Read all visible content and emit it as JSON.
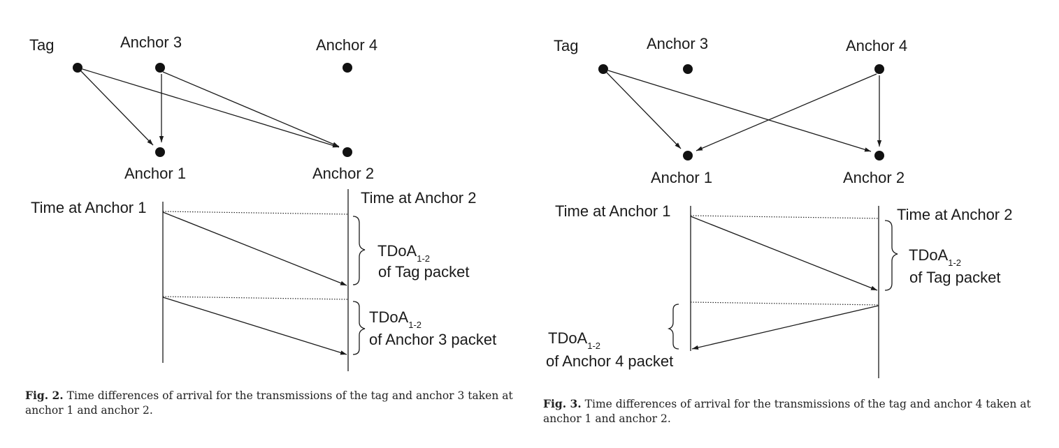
{
  "fig2": {
    "nodes": {
      "tag": "Tag",
      "anchor3": "Anchor 3",
      "anchor4": "Anchor 4",
      "anchor1": "Anchor 1",
      "anchor2": "Anchor 2"
    },
    "timeline": {
      "left_label": "Time at Anchor 1",
      "right_label": "Time at Anchor 2",
      "tdoa1_main": "TDoA",
      "tdoa1_sub": "1-2",
      "tdoa1_desc": "of Tag packet",
      "tdoa2_main": "TDoA",
      "tdoa2_sub": "1-2",
      "tdoa2_desc": "of Anchor 3 packet"
    },
    "caption": {
      "label": "Fig. 2.",
      "text": "Time differences of arrival for the transmissions of the tag and anchor 3 taken at anchor 1 and anchor 2."
    }
  },
  "fig3": {
    "nodes": {
      "tag": "Tag",
      "anchor3": "Anchor 3",
      "anchor4": "Anchor 4",
      "anchor1": "Anchor 1",
      "anchor2": "Anchor 2"
    },
    "timeline": {
      "left_label": "Time at Anchor 1",
      "right_label": "Time at Anchor 2",
      "tdoa1_main": "TDoA",
      "tdoa1_sub": "1-2",
      "tdoa1_desc": "of Tag packet",
      "tdoa2_main": "TDoA",
      "tdoa2_sub": "1-2",
      "tdoa2_desc": "of Anchor 4 packet"
    },
    "caption": {
      "label": "Fig. 3.",
      "text": "Time differences of arrival for the transmissions of the tag and anchor 4 taken at anchor 1 and anchor 2."
    }
  }
}
